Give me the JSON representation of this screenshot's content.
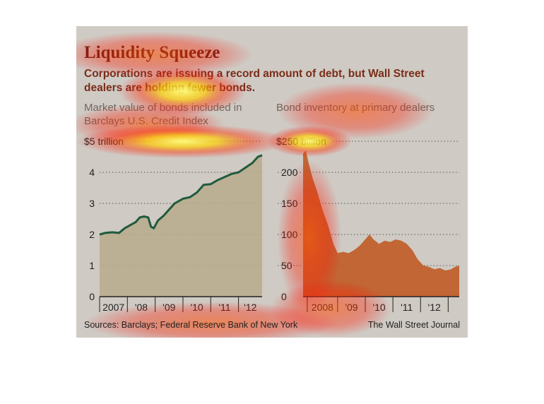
{
  "title": "Liquidity Squeeze",
  "subtitle": "Corporations are issuing a record amount of debt, but Wall Street dealers are holding fewer bonds.",
  "source": "Sources: Barclays; Federal Reserve Bank of New York",
  "credit": "The Wall Street Journal",
  "colors": {
    "background": "#cfcac3",
    "left_fill": "#b7ab8c",
    "left_line": "#1f5b3d",
    "right_fill": "#c0602c",
    "title": "#5a2216"
  },
  "chart_data": [
    {
      "type": "area",
      "title": "Market value of bonds included in Barclays U.S. Credit Index",
      "unit_label": "$5 trillion",
      "y_ticks": [
        "0",
        "1",
        "2",
        "3",
        "4"
      ],
      "ylim": [
        0,
        5
      ],
      "x_ticks": [
        "2007",
        "'08",
        "'09",
        "'10",
        "'11",
        "'12"
      ],
      "xlim": [
        2007.0,
        2012.85
      ],
      "series": [
        {
          "values": [
            [
              2007.0,
              2.0
            ],
            [
              2007.2,
              2.05
            ],
            [
              2007.45,
              2.07
            ],
            [
              2007.7,
              2.05
            ],
            [
              2007.9,
              2.2
            ],
            [
              2008.1,
              2.3
            ],
            [
              2008.3,
              2.4
            ],
            [
              2008.45,
              2.55
            ],
            [
              2008.6,
              2.58
            ],
            [
              2008.75,
              2.55
            ],
            [
              2008.85,
              2.25
            ],
            [
              2008.95,
              2.2
            ],
            [
              2009.1,
              2.45
            ],
            [
              2009.3,
              2.6
            ],
            [
              2009.5,
              2.8
            ],
            [
              2009.7,
              3.0
            ],
            [
              2010.0,
              3.15
            ],
            [
              2010.25,
              3.2
            ],
            [
              2010.5,
              3.35
            ],
            [
              2010.75,
              3.6
            ],
            [
              2011.0,
              3.62
            ],
            [
              2011.25,
              3.75
            ],
            [
              2011.5,
              3.85
            ],
            [
              2011.75,
              3.95
            ],
            [
              2012.0,
              4.0
            ],
            [
              2012.25,
              4.15
            ],
            [
              2012.5,
              4.3
            ],
            [
              2012.7,
              4.5
            ],
            [
              2012.85,
              4.55
            ]
          ]
        }
      ]
    },
    {
      "type": "area",
      "title": "Bond inventory at primary dealers",
      "unit_label": "$250 billion",
      "y_ticks": [
        "0",
        "50",
        "100",
        "150",
        "200"
      ],
      "ylim": [
        0,
        250
      ],
      "x_ticks": [
        "2008",
        "'09",
        "'10",
        "'11",
        "'12"
      ],
      "xlim": [
        2007.25,
        2012.9
      ],
      "series": [
        {
          "values": [
            [
              2007.25,
              230
            ],
            [
              2007.35,
              235
            ],
            [
              2007.45,
              215
            ],
            [
              2007.6,
              190
            ],
            [
              2007.75,
              170
            ],
            [
              2007.95,
              140
            ],
            [
              2008.15,
              115
            ],
            [
              2008.35,
              85
            ],
            [
              2008.5,
              70
            ],
            [
              2008.7,
              72
            ],
            [
              2008.9,
              70
            ],
            [
              2009.1,
              75
            ],
            [
              2009.3,
              82
            ],
            [
              2009.5,
              92
            ],
            [
              2009.65,
              100
            ],
            [
              2009.8,
              92
            ],
            [
              2010.0,
              85
            ],
            [
              2010.2,
              90
            ],
            [
              2010.4,
              88
            ],
            [
              2010.6,
              92
            ],
            [
              2010.8,
              90
            ],
            [
              2011.0,
              85
            ],
            [
              2011.2,
              75
            ],
            [
              2011.4,
              60
            ],
            [
              2011.6,
              50
            ],
            [
              2011.8,
              48
            ],
            [
              2012.0,
              44
            ],
            [
              2012.2,
              46
            ],
            [
              2012.4,
              42
            ],
            [
              2012.6,
              44
            ],
            [
              2012.75,
              48
            ],
            [
              2012.9,
              50
            ]
          ]
        }
      ]
    }
  ]
}
